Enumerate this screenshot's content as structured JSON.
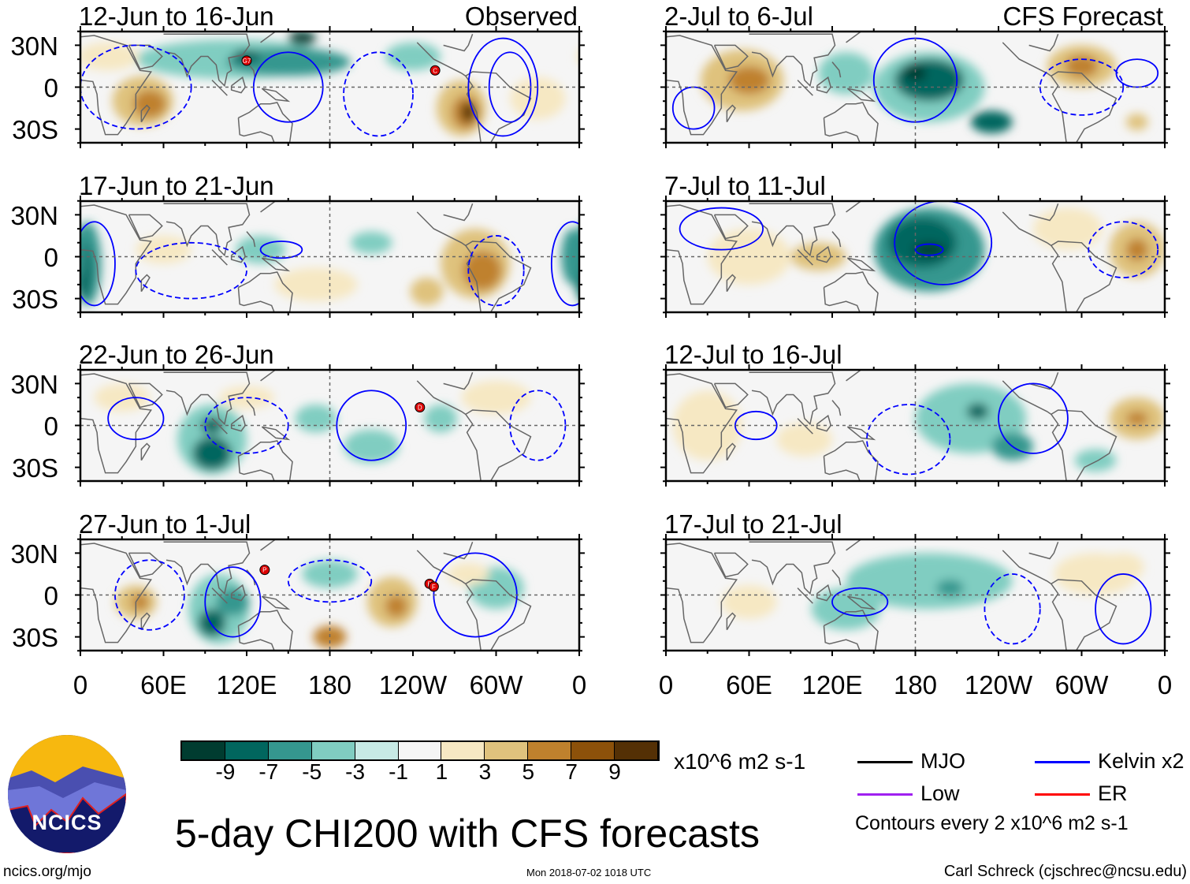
{
  "title": "5-day CHI200 with CFS forecasts",
  "units": "x10^6 m2 s-1",
  "contour_note": "Contours every 2 x10^6 m2 s-1",
  "footer": {
    "left": "ncics.org/mjo",
    "center": "Mon 2018-07-02 1018 UTC",
    "right": "Carl Schreck (cjschrec@ncsu.edu)"
  },
  "logo_text": "NCICS",
  "column_labels": {
    "left": "Observed",
    "right": "CFS Forecast"
  },
  "lat_labels": [
    "30N",
    "0",
    "30S"
  ],
  "lon_labels": [
    "0",
    "60E",
    "120E",
    "180",
    "120W",
    "60W",
    "0"
  ],
  "colorbar": {
    "labels": [
      "-9",
      "-7",
      "-5",
      "-3",
      "-1",
      "1",
      "3",
      "5",
      "7",
      "9"
    ],
    "colors": [
      "#003c30",
      "#01665e",
      "#35978f",
      "#80cdc1",
      "#c7eae5",
      "#f5f5f5",
      "#f6e8c3",
      "#dfc27d",
      "#bf812d",
      "#8c510a",
      "#543005"
    ]
  },
  "legend": [
    {
      "label": "MJO",
      "color": "#000000"
    },
    {
      "label": "Kelvin x2",
      "color": "#0000ff"
    },
    {
      "label": "Low",
      "color": "#a020f0"
    },
    {
      "label": "ER",
      "color": "#ff0000"
    }
  ],
  "panels": [
    {
      "title": "12-Jun to 16-Jun",
      "storms": [
        {
          "label": "G7",
          "lon": 120,
          "lat": 19
        },
        {
          "label": "C",
          "lon": 256,
          "lat": 12
        }
      ],
      "anoms": [
        [
          45,
          -10,
          22,
          18,
          5
        ],
        [
          50,
          -12,
          12,
          10,
          7
        ],
        [
          110,
          20,
          70,
          14,
          -3
        ],
        [
          150,
          18,
          45,
          10,
          -5
        ],
        [
          160,
          35,
          10,
          5,
          -9
        ],
        [
          120,
          22,
          10,
          5,
          -7
        ],
        [
          275,
          -15,
          18,
          20,
          5
        ],
        [
          278,
          -18,
          10,
          12,
          7
        ],
        [
          280,
          -18,
          5,
          7,
          10
        ],
        [
          20,
          22,
          22,
          10,
          3
        ],
        [
          330,
          -8,
          20,
          15,
          3
        ],
        [
          240,
          22,
          20,
          10,
          -3
        ]
      ],
      "contours": [
        [
          150,
          0,
          25,
          25,
          1
        ],
        [
          215,
          -5,
          25,
          30,
          -1
        ],
        [
          305,
          0,
          25,
          35,
          1
        ],
        [
          310,
          0,
          15,
          25,
          1
        ],
        [
          40,
          0,
          40,
          30,
          -1
        ]
      ]
    },
    {
      "title": "17-Jun to 21-Jun",
      "storms": [],
      "anoms": [
        [
          5,
          -5,
          10,
          30,
          -5
        ],
        [
          3,
          -10,
          5,
          20,
          -7
        ],
        [
          355,
          0,
          8,
          20,
          -5
        ],
        [
          60,
          5,
          20,
          10,
          3
        ],
        [
          285,
          -5,
          25,
          25,
          5
        ],
        [
          290,
          -10,
          14,
          14,
          7
        ],
        [
          250,
          -25,
          12,
          10,
          5
        ],
        [
          130,
          5,
          18,
          10,
          -3
        ],
        [
          210,
          10,
          15,
          8,
          -3
        ],
        [
          170,
          -20,
          30,
          12,
          3
        ]
      ],
      "contours": [
        [
          10,
          -5,
          15,
          30,
          1
        ],
        [
          355,
          -5,
          15,
          30,
          1
        ],
        [
          300,
          -10,
          20,
          25,
          -1
        ],
        [
          145,
          5,
          15,
          6,
          1
        ],
        [
          80,
          -10,
          40,
          20,
          -1
        ]
      ]
    },
    {
      "title": "22-Jun to 26-Jun",
      "storms": [
        {
          "label": "D",
          "lon": 245,
          "lat": 13
        }
      ],
      "anoms": [
        [
          95,
          -10,
          25,
          25,
          -3
        ],
        [
          95,
          -20,
          14,
          12,
          -7
        ],
        [
          95,
          0,
          8,
          6,
          -7
        ],
        [
          170,
          5,
          15,
          10,
          -3
        ],
        [
          210,
          -15,
          20,
          12,
          -3
        ],
        [
          300,
          20,
          25,
          12,
          3
        ],
        [
          30,
          20,
          20,
          10,
          3
        ],
        [
          120,
          20,
          20,
          8,
          3
        ],
        [
          260,
          5,
          12,
          10,
          -3
        ]
      ],
      "contours": [
        [
          210,
          0,
          25,
          25,
          1
        ],
        [
          40,
          5,
          20,
          15,
          1
        ],
        [
          330,
          0,
          20,
          25,
          -1
        ],
        [
          120,
          0,
          30,
          20,
          -1
        ]
      ]
    },
    {
      "title": "27-Jun to 1-Jul",
      "storms": [
        {
          "label": "P",
          "lon": 133,
          "lat": 18
        },
        {
          "label": "E",
          "lon": 252,
          "lat": 8
        },
        {
          "label": "F",
          "lon": 255,
          "lat": 6
        }
      ],
      "anoms": [
        [
          100,
          -10,
          22,
          25,
          -3
        ],
        [
          95,
          -20,
          10,
          10,
          -7
        ],
        [
          110,
          -5,
          12,
          10,
          -5
        ],
        [
          40,
          -5,
          15,
          12,
          5
        ],
        [
          43,
          -5,
          6,
          6,
          7
        ],
        [
          180,
          -30,
          12,
          8,
          7
        ],
        [
          225,
          -5,
          18,
          18,
          5
        ],
        [
          228,
          -8,
          8,
          8,
          7
        ],
        [
          300,
          5,
          20,
          15,
          -3
        ],
        [
          280,
          15,
          15,
          8,
          3
        ],
        [
          180,
          15,
          20,
          10,
          -3
        ]
      ],
      "contours": [
        [
          110,
          -5,
          20,
          25,
          1
        ],
        [
          285,
          0,
          30,
          30,
          1
        ],
        [
          180,
          10,
          30,
          15,
          -1
        ],
        [
          50,
          0,
          25,
          25,
          -1
        ]
      ]
    },
    {
      "title": "2-Jul to 6-Jul",
      "storms": [],
      "anoms": [
        [
          55,
          5,
          30,
          22,
          5
        ],
        [
          60,
          5,
          15,
          10,
          7
        ],
        [
          190,
          0,
          40,
          25,
          -3
        ],
        [
          190,
          5,
          25,
          15,
          -7
        ],
        [
          180,
          10,
          8,
          6,
          -9
        ],
        [
          235,
          -25,
          15,
          8,
          -7
        ],
        [
          300,
          15,
          25,
          15,
          5
        ],
        [
          300,
          15,
          12,
          8,
          7
        ],
        [
          340,
          -25,
          8,
          6,
          5
        ],
        [
          130,
          10,
          20,
          15,
          -3
        ]
      ],
      "contours": [
        [
          180,
          5,
          30,
          30,
          1
        ],
        [
          20,
          -15,
          15,
          15,
          1
        ],
        [
          300,
          0,
          30,
          20,
          -1
        ],
        [
          340,
          10,
          15,
          10,
          1
        ]
      ]
    },
    {
      "title": "7-Jul to 11-Jul",
      "storms": [],
      "anoms": [
        [
          190,
          5,
          40,
          30,
          -5
        ],
        [
          185,
          10,
          25,
          18,
          -7
        ],
        [
          190,
          5,
          12,
          5,
          -9
        ],
        [
          340,
          5,
          20,
          20,
          5
        ],
        [
          340,
          5,
          8,
          8,
          7
        ],
        [
          60,
          0,
          30,
          20,
          3
        ],
        [
          110,
          0,
          20,
          10,
          5
        ],
        [
          290,
          20,
          25,
          15,
          3
        ]
      ],
      "contours": [
        [
          200,
          10,
          35,
          30,
          1
        ],
        [
          190,
          5,
          10,
          4,
          1
        ],
        [
          40,
          20,
          30,
          15,
          1
        ],
        [
          330,
          5,
          25,
          20,
          -1
        ]
      ]
    },
    {
      "title": "12-Jul to 16-Jul",
      "storms": [],
      "anoms": [
        [
          220,
          5,
          40,
          25,
          -3
        ],
        [
          225,
          10,
          8,
          6,
          -7
        ],
        [
          250,
          -15,
          15,
          10,
          -5
        ],
        [
          340,
          5,
          20,
          15,
          5
        ],
        [
          340,
          5,
          8,
          5,
          7
        ],
        [
          30,
          0,
          25,
          25,
          3
        ],
        [
          100,
          -10,
          20,
          12,
          3
        ],
        [
          310,
          -25,
          15,
          8,
          -3
        ]
      ],
      "contours": [
        [
          265,
          5,
          25,
          25,
          1
        ],
        [
          65,
          0,
          15,
          10,
          1
        ],
        [
          175,
          -10,
          30,
          25,
          -1
        ]
      ]
    },
    {
      "title": "17-Jul to 21-Jul",
      "storms": [],
      "anoms": [
        [
          190,
          10,
          60,
          20,
          -3
        ],
        [
          205,
          5,
          10,
          6,
          -5
        ],
        [
          310,
          15,
          30,
          15,
          3
        ],
        [
          330,
          20,
          15,
          10,
          3
        ],
        [
          60,
          -5,
          20,
          12,
          3
        ],
        [
          130,
          -10,
          25,
          15,
          -3
        ]
      ],
      "contours": [
        [
          140,
          -5,
          20,
          10,
          1
        ],
        [
          330,
          -10,
          20,
          25,
          1
        ],
        [
          250,
          -10,
          20,
          25,
          -1
        ]
      ]
    }
  ]
}
